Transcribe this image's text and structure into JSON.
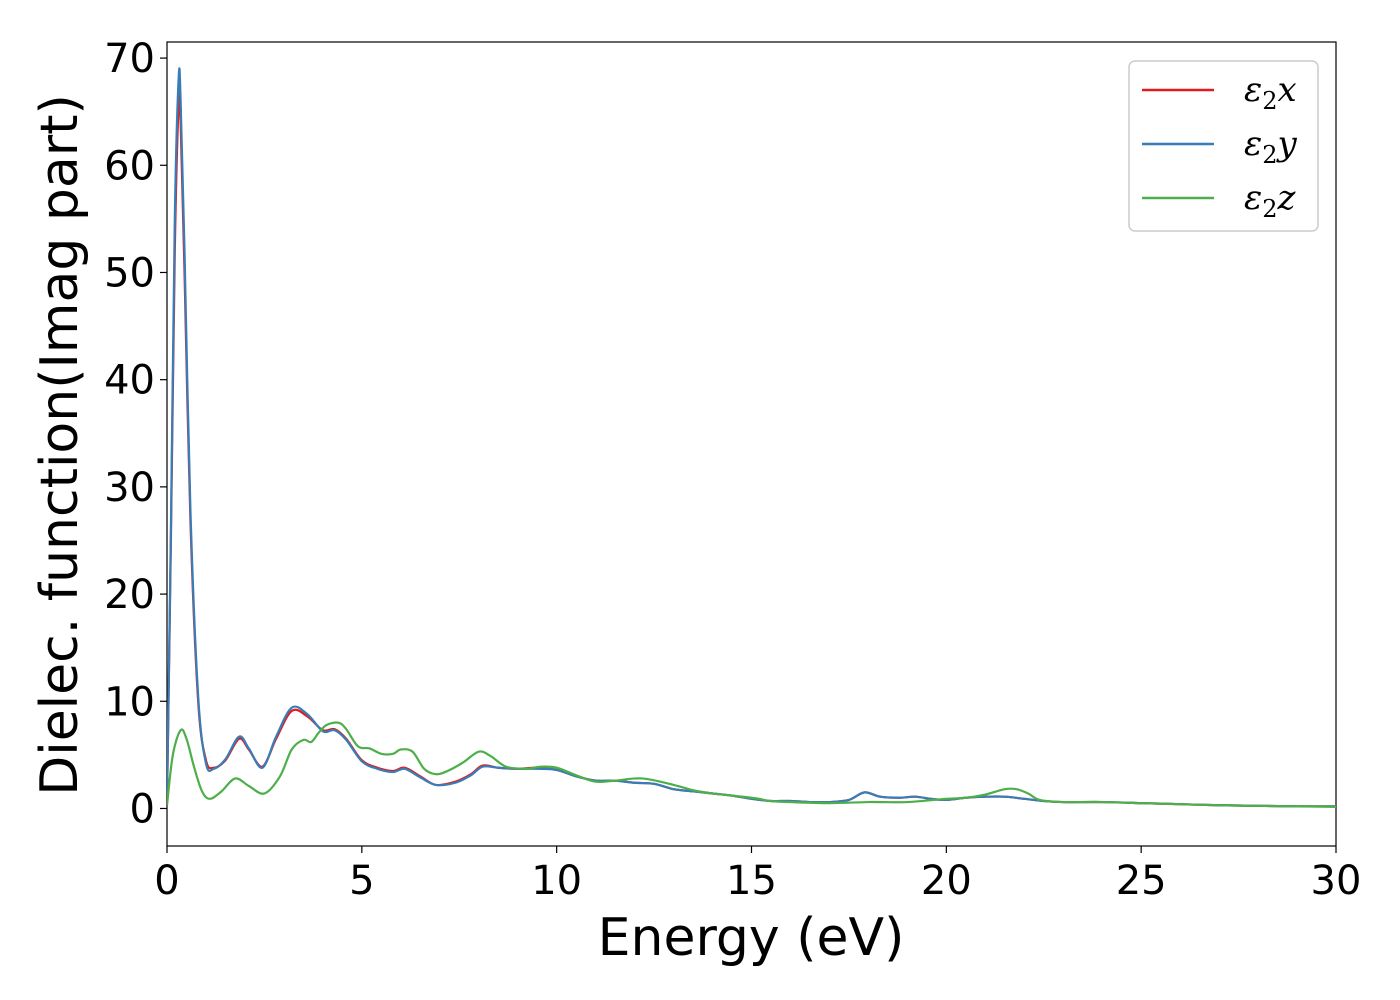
{
  "chart_data": {
    "type": "line",
    "title": "",
    "xlabel": "Energy (eV)",
    "ylabel": "Dielec. function(Imag part)",
    "xlim": [
      0,
      30
    ],
    "ylim": [
      -3.5,
      71.5
    ],
    "xticks": [
      0,
      5,
      10,
      15,
      20,
      25,
      30
    ],
    "yticks": [
      0,
      10,
      20,
      30,
      40,
      50,
      60,
      70
    ],
    "grid": false,
    "legend_position": "top-right",
    "series": [
      {
        "name": "x",
        "color": "#e41a1c",
        "x": [
          0.0,
          0.1,
          0.2,
          0.3,
          0.35,
          0.45,
          0.6,
          0.8,
          1.0,
          1.2,
          1.5,
          1.85,
          2.1,
          2.45,
          2.8,
          3.2,
          3.6,
          4.0,
          4.3,
          4.6,
          5.0,
          5.4,
          5.8,
          6.1,
          6.5,
          6.9,
          7.4,
          7.8,
          8.1,
          8.5,
          9.0,
          9.5,
          10.0,
          10.5,
          11.0,
          11.5,
          12.0,
          12.5,
          13.0,
          13.5,
          14.0,
          14.5,
          15.0,
          15.5,
          16.0,
          16.5,
          17.0,
          17.5,
          17.9,
          18.3,
          18.8,
          19.2,
          19.6,
          20.0,
          20.5,
          21.0,
          21.5,
          22.0,
          22.5,
          23.0,
          24.0,
          25.0,
          26.0,
          27.0,
          28.0,
          29.0,
          30.0
        ],
        "y": [
          0.5,
          25.0,
          52.0,
          65.8,
          64.0,
          50.0,
          27.0,
          10.0,
          4.5,
          3.8,
          4.5,
          6.5,
          5.5,
          3.9,
          6.5,
          9.1,
          8.6,
          7.3,
          7.4,
          6.5,
          4.5,
          3.8,
          3.5,
          3.8,
          3.0,
          2.2,
          2.5,
          3.2,
          4.0,
          3.8,
          3.7,
          3.8,
          3.6,
          3.0,
          2.6,
          2.6,
          2.4,
          2.3,
          1.8,
          1.6,
          1.4,
          1.2,
          0.9,
          0.7,
          0.7,
          0.6,
          0.6,
          0.8,
          1.5,
          1.1,
          1.0,
          1.1,
          0.9,
          0.8,
          1.0,
          1.1,
          1.1,
          0.9,
          0.7,
          0.6,
          0.6,
          0.5,
          0.4,
          0.3,
          0.25,
          0.2,
          0.2
        ]
      },
      {
        "name": "y",
        "color": "#377eb8",
        "x": [
          0.0,
          0.1,
          0.2,
          0.3,
          0.35,
          0.45,
          0.6,
          0.8,
          1.0,
          1.2,
          1.5,
          1.85,
          2.1,
          2.45,
          2.8,
          3.2,
          3.6,
          4.0,
          4.3,
          4.6,
          5.0,
          5.4,
          5.8,
          6.1,
          6.5,
          6.9,
          7.4,
          7.8,
          8.1,
          8.5,
          9.0,
          9.5,
          10.0,
          10.5,
          11.0,
          11.5,
          12.0,
          12.5,
          13.0,
          13.5,
          14.0,
          14.5,
          15.0,
          15.5,
          16.0,
          16.5,
          17.0,
          17.5,
          17.9,
          18.3,
          18.8,
          19.2,
          19.6,
          20.0,
          20.5,
          21.0,
          21.5,
          22.0,
          22.5,
          23.0,
          24.0,
          25.0,
          26.0,
          27.0,
          28.0,
          29.0,
          30.0
        ],
        "y": [
          0.5,
          26.0,
          55.0,
          68.2,
          66.0,
          52.0,
          28.0,
          10.5,
          4.2,
          3.7,
          4.6,
          6.7,
          5.6,
          3.8,
          6.7,
          9.4,
          8.8,
          7.2,
          7.3,
          6.4,
          4.4,
          3.7,
          3.4,
          3.7,
          2.9,
          2.2,
          2.4,
          3.1,
          3.9,
          3.8,
          3.7,
          3.7,
          3.6,
          3.0,
          2.6,
          2.6,
          2.4,
          2.3,
          1.8,
          1.6,
          1.4,
          1.2,
          0.9,
          0.7,
          0.7,
          0.6,
          0.6,
          0.8,
          1.5,
          1.1,
          1.0,
          1.1,
          0.9,
          0.8,
          1.0,
          1.1,
          1.1,
          0.9,
          0.7,
          0.6,
          0.6,
          0.5,
          0.4,
          0.3,
          0.25,
          0.2,
          0.2
        ]
      },
      {
        "name": "z",
        "color": "#4daf4a",
        "x": [
          0.0,
          0.15,
          0.35,
          0.5,
          0.7,
          0.9,
          1.1,
          1.4,
          1.75,
          2.1,
          2.5,
          2.9,
          3.2,
          3.5,
          3.7,
          3.9,
          4.1,
          4.4,
          4.6,
          4.9,
          5.2,
          5.5,
          5.8,
          6.0,
          6.3,
          6.6,
          6.9,
          7.2,
          7.6,
          8.0,
          8.3,
          8.7,
          9.2,
          9.6,
          10.0,
          10.5,
          11.0,
          11.5,
          12.2,
          13.0,
          13.5,
          14.0,
          15.0,
          15.5,
          16.0,
          17.0,
          18.0,
          19.0,
          20.0,
          20.5,
          21.0,
          21.5,
          21.8,
          22.1,
          22.4,
          23.0,
          24.0,
          25.0,
          26.0,
          27.0,
          28.0,
          29.0,
          30.0
        ],
        "y": [
          0.3,
          5.0,
          7.3,
          6.5,
          3.8,
          1.6,
          0.9,
          1.6,
          2.8,
          2.1,
          1.4,
          3.0,
          5.5,
          6.4,
          6.2,
          7.1,
          7.8,
          8.0,
          7.4,
          5.8,
          5.6,
          5.1,
          5.1,
          5.5,
          5.3,
          3.7,
          3.2,
          3.5,
          4.3,
          5.3,
          4.9,
          3.9,
          3.7,
          3.9,
          3.8,
          3.1,
          2.5,
          2.6,
          2.8,
          2.2,
          1.7,
          1.4,
          1.0,
          0.7,
          0.6,
          0.5,
          0.6,
          0.6,
          0.9,
          1.0,
          1.3,
          1.8,
          1.8,
          1.4,
          0.8,
          0.6,
          0.6,
          0.5,
          0.4,
          0.3,
          0.25,
          0.2,
          0.15
        ]
      }
    ]
  }
}
